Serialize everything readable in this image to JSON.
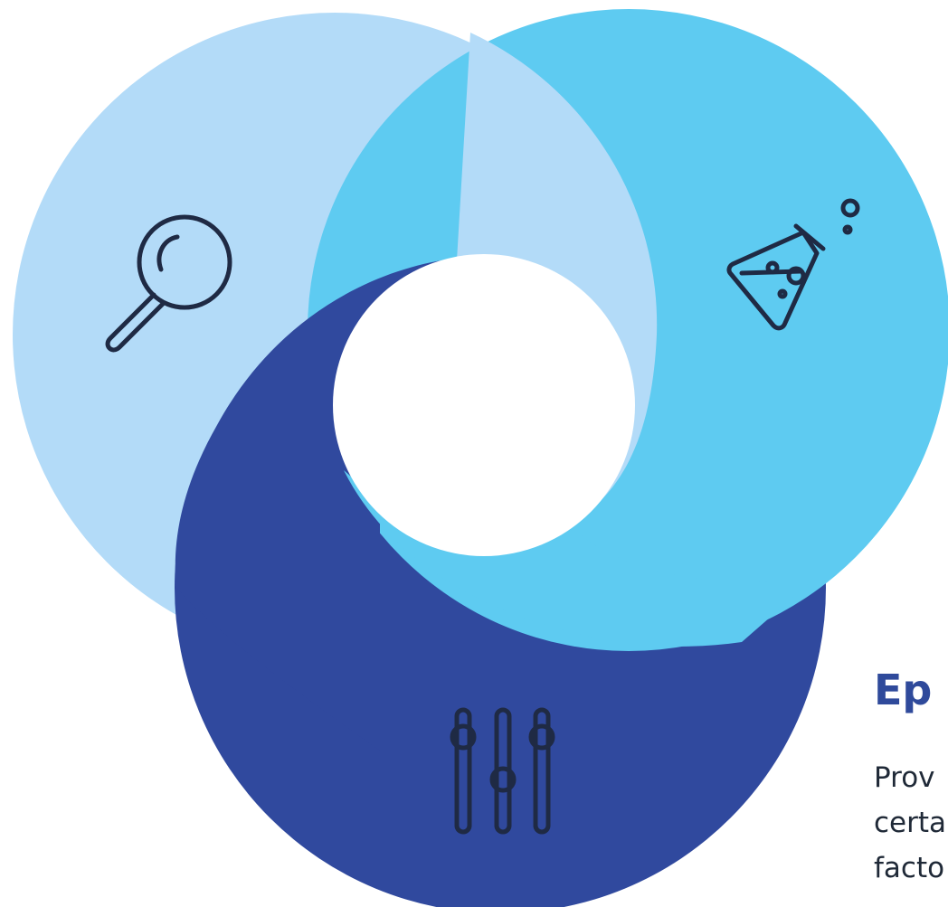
{
  "colors": {
    "light_blue": "#b3dbf8",
    "cyan": "#5ecbf1",
    "dark_blue": "#30499e",
    "icon_stroke": "#1f2a44",
    "heading": "#2f4a9b",
    "body_text": "#1f2937"
  },
  "icons": [
    "search-icon",
    "flask-icon",
    "sliders-icon"
  ],
  "text": {
    "heading": "Ep",
    "body_lines": [
      "Prov",
      "certa",
      "facto"
    ]
  }
}
